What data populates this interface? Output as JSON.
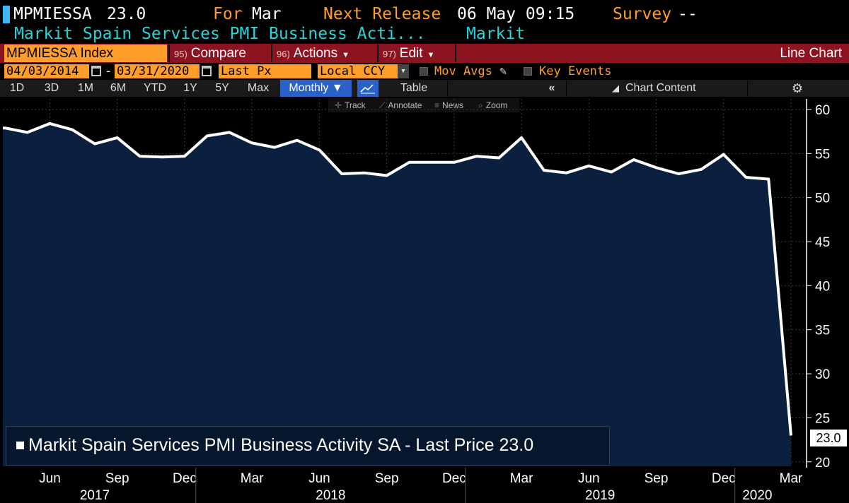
{
  "header": {
    "ticker": "MPMIESSA",
    "price": "23.0",
    "for_label": "For",
    "for_value": "Mar",
    "next_release_label": "Next Release",
    "next_release_value": "06 May 09:15",
    "survey_label": "Survey",
    "survey_value": "--",
    "security_name": "Markit Spain Services PMI Business Acti...",
    "source": "Markit"
  },
  "command_bar": {
    "security_field": "MPMIESSA Index",
    "buttons": [
      {
        "num": "95)",
        "label": "Compare"
      },
      {
        "num": "96)",
        "label": "Actions"
      },
      {
        "num": "97)",
        "label": "Edit"
      }
    ],
    "chart_type": "Line Chart"
  },
  "params": {
    "start_date": "04/03/2014",
    "end_date": "03/31/2020",
    "field": "Last Px",
    "currency": "Local CCY",
    "mov_avgs": "Mov Avgs",
    "key_events": "Key Events"
  },
  "toolbar": {
    "periods": [
      "1D",
      "3D",
      "1M",
      "6M",
      "YTD",
      "1Y",
      "5Y",
      "Max"
    ],
    "frequency": "Monthly ▼",
    "table": "Table",
    "chart_content": "Chart Content"
  },
  "sub_toolbar": {
    "track": "Track",
    "annotate": "Annotate",
    "news": "News",
    "zoom": "Zoom"
  },
  "chart_data": {
    "type": "area",
    "series": [
      {
        "name": "Markit Spain Services PMI Business Activity SA - Last Price 23.0",
        "color": "#ffffff",
        "fill": "#0b1f3e",
        "values": [
          57.9,
          57.4,
          58.4,
          57.7,
          56.1,
          56.8,
          54.7,
          54.6,
          54.7,
          57.0,
          57.4,
          56.2,
          55.7,
          56.5,
          55.4,
          52.7,
          52.8,
          52.5,
          54.0,
          54.0,
          54.0,
          54.7,
          54.5,
          56.8,
          53.1,
          52.8,
          53.6,
          52.9,
          54.3,
          53.4,
          52.7,
          53.2,
          54.9,
          52.3,
          52.1,
          23.0
        ]
      }
    ],
    "x_start": "2017-04",
    "x_end": "2020-03",
    "x_tick_labels": [
      {
        "label": "Jun",
        "month": "2017-06"
      },
      {
        "label": "Sep",
        "month": "2017-09"
      },
      {
        "label": "Dec",
        "month": "2017-12"
      },
      {
        "label": "Mar",
        "month": "2018-03"
      },
      {
        "label": "Jun",
        "month": "2018-06"
      },
      {
        "label": "Sep",
        "month": "2018-09"
      },
      {
        "label": "Dec",
        "month": "2018-12"
      },
      {
        "label": "Mar",
        "month": "2019-03"
      },
      {
        "label": "Jun",
        "month": "2019-06"
      },
      {
        "label": "Sep",
        "month": "2019-09"
      },
      {
        "label": "Dec",
        "month": "2019-12"
      },
      {
        "label": "Mar",
        "month": "2020-03"
      }
    ],
    "years": [
      {
        "label": "2017",
        "month": "2017-08"
      },
      {
        "label": "2018",
        "month": "2018-06.5"
      },
      {
        "label": "2019",
        "month": "2019-06.5"
      },
      {
        "label": "2020",
        "month": "2020-01.5"
      }
    ],
    "year_boundaries": [
      "2018-01",
      "2019-01",
      "2020-01"
    ],
    "y_ticks": [
      20,
      25,
      30,
      35,
      40,
      45,
      50,
      55,
      60
    ],
    "ylim": [
      19.5,
      61.2
    ],
    "last_value_label": "23.0",
    "legend_position": "bottom-left",
    "grid": true
  }
}
